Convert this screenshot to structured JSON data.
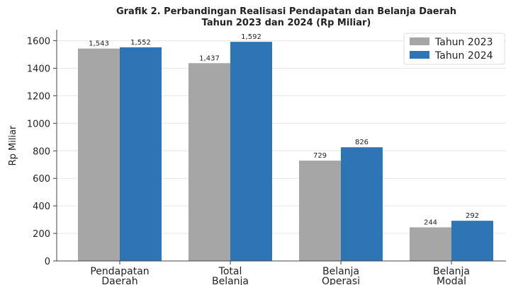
{
  "chart_data": {
    "type": "bar",
    "title": [
      "Grafik 2. Perbandingan Realisasi Pendapatan dan Belanja Daerah",
      "Tahun 2023 dan 2024 (Rp Miliar)"
    ],
    "y_label": "Rp Miliar",
    "categories": [
      [
        "Pendapatan",
        "Daerah"
      ],
      [
        "Total",
        "Belanja"
      ],
      [
        "Belanja",
        "Operasi"
      ],
      [
        "Belanja",
        "Modal"
      ]
    ],
    "series": [
      {
        "name": "Tahun 2023",
        "color": "#a6a6a6",
        "values": [
          1543,
          1437,
          729,
          244
        ],
        "value_labels": [
          "1,543",
          "1,437",
          "729",
          "244"
        ]
      },
      {
        "name": "Tahun 2024",
        "color": "#2e75b6",
        "values": [
          1552,
          1592,
          826,
          292
        ],
        "value_labels": [
          "1,552",
          "1,592",
          "826",
          "292"
        ]
      }
    ],
    "ylim": [
      0,
      1680
    ],
    "yticks": [
      0,
      200,
      400,
      600,
      800,
      1000,
      1200,
      1400,
      1600
    ],
    "grid": true,
    "legend": "upper right"
  }
}
